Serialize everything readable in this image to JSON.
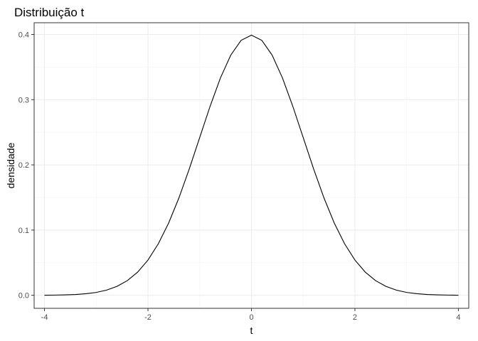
{
  "chart_data": {
    "type": "line",
    "title": "Distribuição t",
    "xlabel": "t",
    "ylabel": "densidade",
    "xlim": [
      -4.2,
      4.2
    ],
    "ylim": [
      -0.02,
      0.418
    ],
    "x_ticks": [
      -4,
      -2,
      0,
      2,
      4
    ],
    "x_tick_labels": [
      "-4",
      "-2",
      "0",
      "2",
      "4"
    ],
    "y_ticks": [
      0.0,
      0.1,
      0.2,
      0.3,
      0.4
    ],
    "y_tick_labels": [
      "0.0",
      "0.1",
      "0.2",
      "0.3",
      "0.4"
    ],
    "grid": true,
    "series": [
      {
        "x": [
          -4.0,
          -3.8,
          -3.6,
          -3.4,
          -3.2,
          -3.0,
          -2.8,
          -2.6,
          -2.4,
          -2.2,
          -2.0,
          -1.8,
          -1.6,
          -1.4,
          -1.2,
          -1.0,
          -0.8,
          -0.6,
          -0.4,
          -0.2,
          0.0,
          0.2,
          0.4,
          0.6,
          0.8,
          1.0,
          1.2,
          1.4,
          1.6,
          1.8,
          2.0,
          2.2,
          2.4,
          2.6,
          2.8,
          3.0,
          3.2,
          3.4,
          3.6,
          3.8,
          4.0
        ],
        "y": [
          0.0001,
          0.0003,
          0.0006,
          0.0012,
          0.0024,
          0.0044,
          0.0079,
          0.0136,
          0.0224,
          0.0355,
          0.054,
          0.079,
          0.1109,
          0.1497,
          0.1942,
          0.242,
          0.2897,
          0.3332,
          0.3683,
          0.391,
          0.3989,
          0.391,
          0.3683,
          0.3332,
          0.2897,
          0.242,
          0.1942,
          0.1497,
          0.1109,
          0.079,
          0.054,
          0.0355,
          0.0224,
          0.0136,
          0.0079,
          0.0044,
          0.0024,
          0.0012,
          0.0006,
          0.0003,
          0.0001
        ]
      }
    ]
  }
}
